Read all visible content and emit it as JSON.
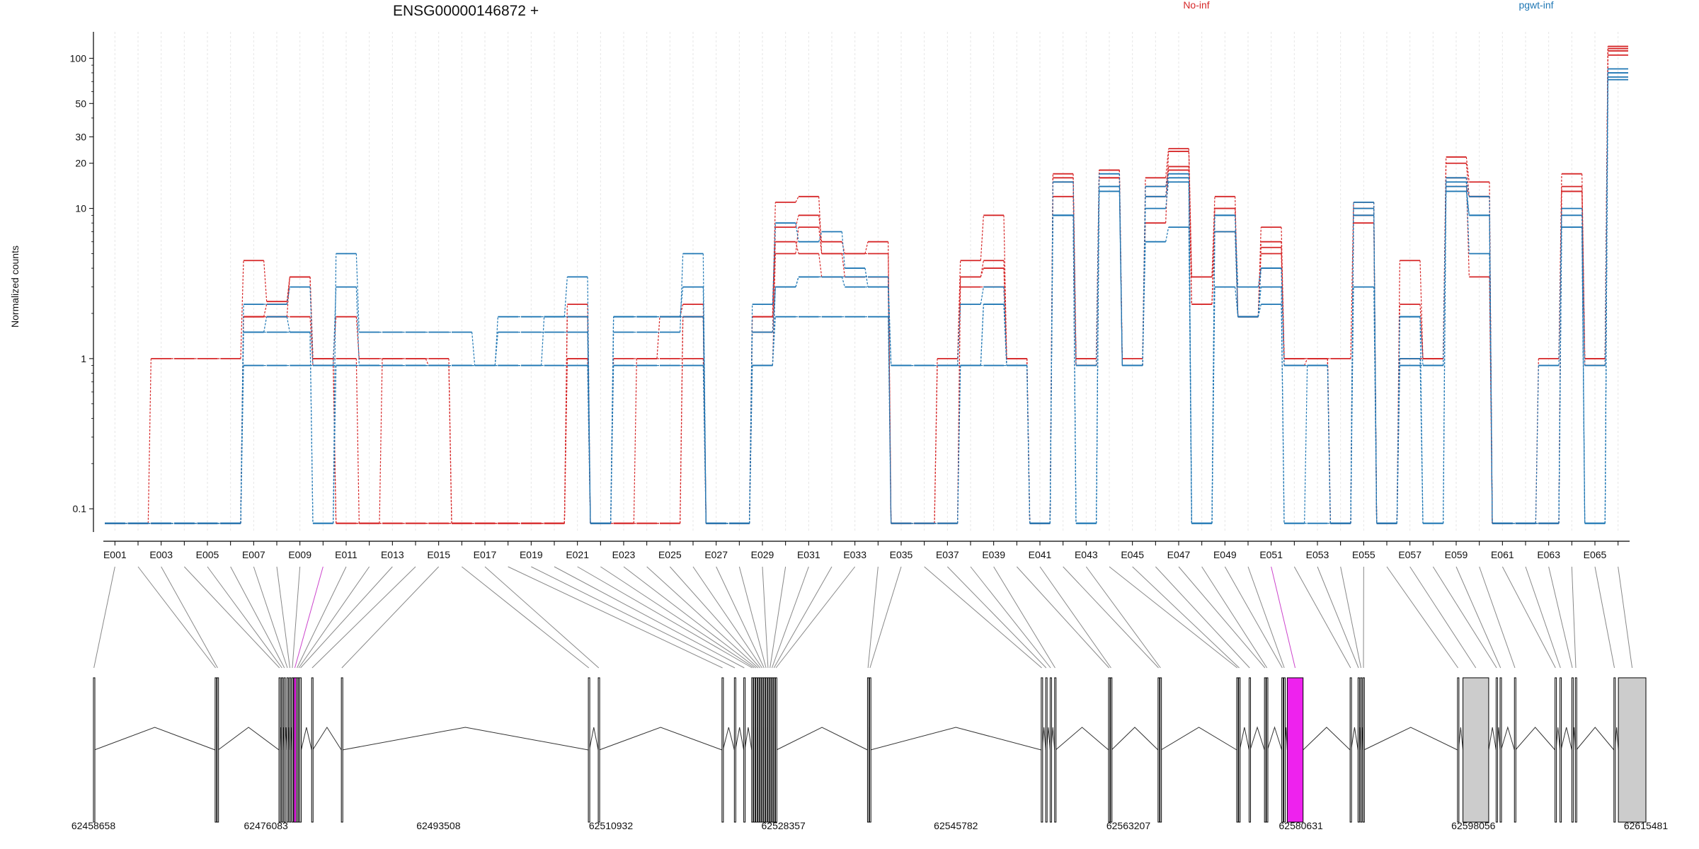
{
  "chart_data": {
    "type": "line",
    "title": "ENSG00000146872 +",
    "ylabel": "Normalized counts",
    "yscale": "log",
    "ylim": [
      0.07,
      150
    ],
    "yticks": [
      "0.1",
      "1",
      "10",
      "20",
      "30",
      "50",
      "100"
    ],
    "grid": true,
    "legend": [
      {
        "name": "No-inf",
        "color": "#d62728"
      },
      {
        "name": "pgwt-inf",
        "color": "#1f77b4"
      }
    ],
    "exons": [
      "E001",
      "E002",
      "E003",
      "E004",
      "E005",
      "E006",
      "E007",
      "E008",
      "E009",
      "E010",
      "E011",
      "E012",
      "E013",
      "E014",
      "E015",
      "E016",
      "E017",
      "E018",
      "E019",
      "E020",
      "E021",
      "E022",
      "E023",
      "E024",
      "E025",
      "E026",
      "E027",
      "E028",
      "E029",
      "E030",
      "E031",
      "E032",
      "E033",
      "E034",
      "E035",
      "E036",
      "E037",
      "E038",
      "E039",
      "E040",
      "E041",
      "E042",
      "E043",
      "E044",
      "E045",
      "E046",
      "E047",
      "E048",
      "E049",
      "E050",
      "E051",
      "E052",
      "E053",
      "E054",
      "E055",
      "E056",
      "E057",
      "E058",
      "E059",
      "E060",
      "E061",
      "E062",
      "E063",
      "E064",
      "E065",
      "E066"
    ],
    "exon_tick_labels": [
      "E001",
      "E003",
      "E005",
      "E007",
      "E009",
      "E011",
      "E013",
      "E015",
      "E017",
      "E019",
      "E021",
      "E023",
      "E025",
      "E027",
      "E029",
      "E031",
      "E033",
      "E035",
      "E037",
      "E039",
      "E041",
      "E043",
      "E045",
      "E047",
      "E049",
      "E051",
      "E053",
      "E055",
      "E057",
      "E059",
      "E061",
      "E063",
      "E065"
    ],
    "series": [
      {
        "group": "No-inf",
        "color": "#d62728",
        "values": [
          0.08,
          0.08,
          1,
          1,
          1,
          1,
          4.5,
          2.4,
          3.5,
          1,
          1,
          0.08,
          1,
          1,
          1,
          0.08,
          0.08,
          0.08,
          0.08,
          0.08,
          1,
          0.08,
          1,
          1,
          1,
          1,
          0.08,
          0.08,
          1.9,
          11,
          12,
          5,
          5,
          6,
          0.08,
          0.08,
          1,
          4.5,
          9,
          1,
          0.08,
          17,
          1,
          18,
          1,
          16,
          25,
          3.5,
          12,
          1.9,
          7.5,
          1,
          1,
          1,
          11,
          0.08,
          4.5,
          1,
          22,
          15,
          0.08,
          0.08,
          1,
          17,
          1,
          120
        ]
      },
      {
        "group": "No-inf",
        "color": "#d62728",
        "values": [
          0.08,
          0.08,
          0.08,
          0.08,
          0.08,
          0.08,
          1.9,
          2.3,
          3.5,
          1,
          1.9,
          1,
          1,
          1,
          0.9,
          0.08,
          0.08,
          0.08,
          0.08,
          0.08,
          2.3,
          0.08,
          0.08,
          1,
          1.9,
          2.3,
          0.08,
          0.08,
          1.5,
          7.5,
          9,
          6,
          5,
          5,
          0.08,
          0.08,
          0.9,
          3.5,
          4.5,
          1,
          0.08,
          15,
          1,
          18,
          0.9,
          14,
          19,
          2.3,
          10,
          1.9,
          6,
          1,
          1,
          0.08,
          9,
          0.08,
          2.3,
          1,
          20,
          12,
          0.08,
          0.08,
          0.08,
          13,
          1,
          105
        ]
      },
      {
        "group": "No-inf",
        "color": "#d62728",
        "values": [
          0.08,
          0.08,
          0.08,
          0.08,
          0.08,
          0.08,
          1.9,
          1.9,
          1.9,
          0.9,
          0.08,
          0.08,
          0.08,
          0.08,
          0.08,
          0.08,
          0.08,
          0.08,
          0.08,
          0.08,
          1,
          0.08,
          0.08,
          0.08,
          0.08,
          1.9,
          0.08,
          0.08,
          0.9,
          5,
          7.5,
          5,
          3.5,
          3.5,
          0.08,
          0.08,
          0.08,
          3,
          3,
          0.9,
          0.08,
          12,
          0.9,
          16,
          0.9,
          12,
          18,
          2.3,
          7,
          1.9,
          5,
          0.9,
          1,
          0.08,
          8,
          0.08,
          1,
          1,
          16,
          3.5,
          0.08,
          0.08,
          0.08,
          14,
          0.9,
          112
        ]
      },
      {
        "group": "No-inf",
        "color": "#d62728",
        "values": [
          0.08,
          0.08,
          0.08,
          0.08,
          0.08,
          0.08,
          1.9,
          1.9,
          3.5,
          1,
          0.08,
          0.08,
          0.08,
          0.08,
          0.08,
          0.08,
          0.08,
          0.08,
          0.08,
          0.08,
          1.9,
          0.08,
          0.08,
          0.08,
          0.08,
          1.9,
          0.08,
          0.08,
          1.9,
          6,
          5,
          3.5,
          3.5,
          3.5,
          0.08,
          0.08,
          0.08,
          3.5,
          4,
          1,
          0.08,
          16,
          0.9,
          16,
          0.9,
          8,
          24,
          3.5,
          10,
          1.9,
          5.5,
          1,
          1,
          0.08,
          10,
          0.08,
          1,
          1,
          14,
          12,
          0.08,
          0.08,
          0.08,
          13,
          1,
          116
        ]
      },
      {
        "group": "pgwt-inf",
        "color": "#1f77b4",
        "values": [
          0.08,
          0.08,
          0.08,
          0.08,
          0.08,
          0.08,
          2.3,
          2.3,
          3,
          0.9,
          3,
          0.9,
          0.9,
          0.9,
          0.9,
          0.9,
          0.9,
          0.9,
          0.9,
          1.9,
          3.5,
          0.08,
          1.9,
          1.9,
          1.9,
          3,
          0.08,
          0.08,
          2.3,
          8,
          6,
          7,
          4,
          3,
          0.9,
          0.9,
          0.9,
          2.3,
          3,
          0.9,
          0.08,
          15,
          0.9,
          17,
          0.9,
          14,
          17,
          0.08,
          9,
          3,
          4,
          0.9,
          0.9,
          0.08,
          10,
          0.08,
          1.9,
          0.9,
          16,
          12,
          0.08,
          0.08,
          0.9,
          10,
          0.9,
          80
        ]
      },
      {
        "group": "pgwt-inf",
        "color": "#1f77b4",
        "values": [
          0.08,
          0.08,
          0.08,
          0.08,
          0.08,
          0.08,
          1.5,
          1.9,
          1.5,
          0.08,
          5,
          1.5,
          1.5,
          1.5,
          1.5,
          1.5,
          0.9,
          1.5,
          1.5,
          1.5,
          1.5,
          0.08,
          1.5,
          1.5,
          1.5,
          5,
          0.08,
          0.08,
          1.5,
          3,
          3.5,
          3.5,
          3,
          3,
          0.08,
          0.08,
          0.08,
          0.9,
          2.3,
          0.9,
          0.08,
          9,
          0.08,
          14,
          0.9,
          6,
          7.5,
          0.08,
          3,
          1.9,
          3,
          0.08,
          0.08,
          0.08,
          3,
          0.08,
          1,
          0.08,
          15,
          5,
          0.08,
          0.08,
          0.08,
          7.5,
          0.08,
          75
        ]
      },
      {
        "group": "pgwt-inf",
        "color": "#1f77b4",
        "values": [
          0.08,
          0.08,
          0.08,
          0.08,
          0.08,
          0.08,
          0.9,
          0.9,
          0.9,
          0.9,
          0.9,
          0.9,
          0.9,
          0.9,
          0.9,
          0.9,
          0.9,
          1.9,
          1.9,
          1.9,
          1.9,
          0.08,
          1.9,
          1.9,
          1.9,
          1.9,
          0.08,
          0.08,
          0.9,
          1.9,
          1.9,
          1.9,
          1.9,
          1.9,
          0.08,
          0.08,
          0.08,
          0.9,
          0.9,
          0.9,
          0.08,
          9,
          0.08,
          14,
          0.9,
          10,
          15,
          0.08,
          9,
          1.9,
          4,
          0.9,
          0.9,
          0.08,
          11,
          0.08,
          0.9,
          0.9,
          14,
          9,
          0.08,
          0.08,
          0.08,
          7.5,
          0.08,
          72
        ]
      },
      {
        "group": "pgwt-inf",
        "color": "#1f77b4",
        "values": [
          0.08,
          0.08,
          0.08,
          0.08,
          0.08,
          0.08,
          1.5,
          1.5,
          1.5,
          0.08,
          0.9,
          0.9,
          0.9,
          0.9,
          0.9,
          0.9,
          0.9,
          0.9,
          0.9,
          0.9,
          0.9,
          0.08,
          0.9,
          0.9,
          0.9,
          0.9,
          0.08,
          0.08,
          0.9,
          3,
          3.5,
          3.5,
          3.5,
          3.5,
          0.9,
          0.9,
          0.9,
          0.9,
          2.3,
          0.9,
          0.08,
          9,
          0.08,
          13,
          0.9,
          12,
          16,
          0.08,
          7,
          1.9,
          2.3,
          0.08,
          0.9,
          0.08,
          9,
          0.08,
          1.9,
          0.08,
          13,
          9,
          0.08,
          0.08,
          0.08,
          9,
          0.08,
          85
        ]
      }
    ],
    "gene_model": {
      "coordinates": [
        "62458658",
        "62476083",
        "62493508",
        "62510932",
        "62528357",
        "62545782",
        "62563207",
        "62580631",
        "62598056",
        "62615481"
      ],
      "range": [
        62458658,
        62615481
      ],
      "exons": [
        {
          "id": "E001",
          "start": 62458658,
          "end": 62458750
        },
        {
          "id": "E002",
          "start": 62470950,
          "end": 62471050
        },
        {
          "id": "E003",
          "start": 62471150,
          "end": 62471250
        },
        {
          "id": "E004",
          "start": 62477400,
          "end": 62477500
        },
        {
          "id": "E005",
          "start": 62477650,
          "end": 62477750
        },
        {
          "id": "E006",
          "start": 62477900,
          "end": 62478000
        },
        {
          "id": "E007",
          "start": 62478200,
          "end": 62478300
        },
        {
          "id": "E008",
          "start": 62478450,
          "end": 62478550
        },
        {
          "id": "E009",
          "start": 62478700,
          "end": 62478800
        },
        {
          "id": "E010",
          "start": 62478900,
          "end": 62479100
        },
        {
          "id": "E011",
          "start": 62479150,
          "end": 62479300
        },
        {
          "id": "E012",
          "start": 62479350,
          "end": 62479450
        },
        {
          "id": "E013",
          "start": 62479500,
          "end": 62479650
        },
        {
          "id": "E014",
          "start": 62480700,
          "end": 62480800
        },
        {
          "id": "E015",
          "start": 62483700,
          "end": 62483800
        },
        {
          "id": "E016",
          "start": 62508650,
          "end": 62508750
        },
        {
          "id": "E017",
          "start": 62509650,
          "end": 62509750
        },
        {
          "id": "E018",
          "start": 62522150,
          "end": 62522250
        },
        {
          "id": "E019",
          "start": 62523400,
          "end": 62523500
        },
        {
          "id": "E020",
          "start": 62524350,
          "end": 62524450
        },
        {
          "id": "E021",
          "start": 62525150,
          "end": 62525250
        },
        {
          "id": "E022",
          "start": 62525350,
          "end": 62525450
        },
        {
          "id": "E023",
          "start": 62525550,
          "end": 62525650
        },
        {
          "id": "E024",
          "start": 62525750,
          "end": 62525850
        },
        {
          "id": "E025",
          "start": 62525950,
          "end": 62526050
        },
        {
          "id": "E026",
          "start": 62526150,
          "end": 62526250
        },
        {
          "id": "E027",
          "start": 62526350,
          "end": 62526450
        },
        {
          "id": "E028",
          "start": 62526550,
          "end": 62526650
        },
        {
          "id": "E029",
          "start": 62526750,
          "end": 62526850
        },
        {
          "id": "E030",
          "start": 62526950,
          "end": 62527050
        },
        {
          "id": "E031",
          "start": 62527150,
          "end": 62527250
        },
        {
          "id": "E032",
          "start": 62527350,
          "end": 62527450
        },
        {
          "id": "E033",
          "start": 62527550,
          "end": 62527650
        },
        {
          "id": "E034",
          "start": 62536850,
          "end": 62536950
        },
        {
          "id": "E035",
          "start": 62537050,
          "end": 62537150
        },
        {
          "id": "E036",
          "start": 62554400,
          "end": 62554500
        },
        {
          "id": "E037",
          "start": 62554850,
          "end": 62554950
        },
        {
          "id": "E038",
          "start": 62555300,
          "end": 62555400
        },
        {
          "id": "E039",
          "start": 62555750,
          "end": 62555850
        },
        {
          "id": "E040",
          "start": 62561200,
          "end": 62561300
        },
        {
          "id": "E041",
          "start": 62561400,
          "end": 62561500
        },
        {
          "id": "E042",
          "start": 62566200,
          "end": 62566300
        },
        {
          "id": "E043",
          "start": 62566400,
          "end": 62566500
        },
        {
          "id": "E044",
          "start": 62574150,
          "end": 62574250
        },
        {
          "id": "E045",
          "start": 62574350,
          "end": 62574450
        },
        {
          "id": "E046",
          "start": 62575400,
          "end": 62575500
        },
        {
          "id": "E047",
          "start": 62576950,
          "end": 62577050
        },
        {
          "id": "E048",
          "start": 62577150,
          "end": 62577250
        },
        {
          "id": "E049",
          "start": 62578700,
          "end": 62578800
        },
        {
          "id": "E050",
          "start": 62578900,
          "end": 62579000
        },
        {
          "id": "E051",
          "start": 62579250,
          "end": 62580850
        },
        {
          "id": "E052",
          "start": 62585600,
          "end": 62585700
        },
        {
          "id": "E053",
          "start": 62586400,
          "end": 62586500
        },
        {
          "id": "E054",
          "start": 62586650,
          "end": 62586750
        },
        {
          "id": "E055",
          "start": 62586900,
          "end": 62587000
        },
        {
          "id": "E056",
          "start": 62596450,
          "end": 62596550
        },
        {
          "id": "E057",
          "start": 62597000,
          "end": 62599600
        },
        {
          "id": "E058",
          "start": 62600350,
          "end": 62600450
        },
        {
          "id": "E059",
          "start": 62600750,
          "end": 62600850
        },
        {
          "id": "E060",
          "start": 62602200,
          "end": 62602300
        },
        {
          "id": "E061",
          "start": 62606300,
          "end": 62606400
        },
        {
          "id": "E062",
          "start": 62606800,
          "end": 62606900
        },
        {
          "id": "E063",
          "start": 62608000,
          "end": 62608100
        },
        {
          "id": "E064",
          "start": 62608350,
          "end": 62608450
        },
        {
          "id": "E065",
          "start": 62612250,
          "end": 62612350
        },
        {
          "id": "E066",
          "start": 62612700,
          "end": 62615481
        }
      ],
      "highlight_color": "#ee22ee",
      "utr_color": "#cccccc",
      "highlight_exons": [
        "E010",
        "E051"
      ],
      "utr_exons": [
        "E057",
        "E066"
      ]
    }
  }
}
